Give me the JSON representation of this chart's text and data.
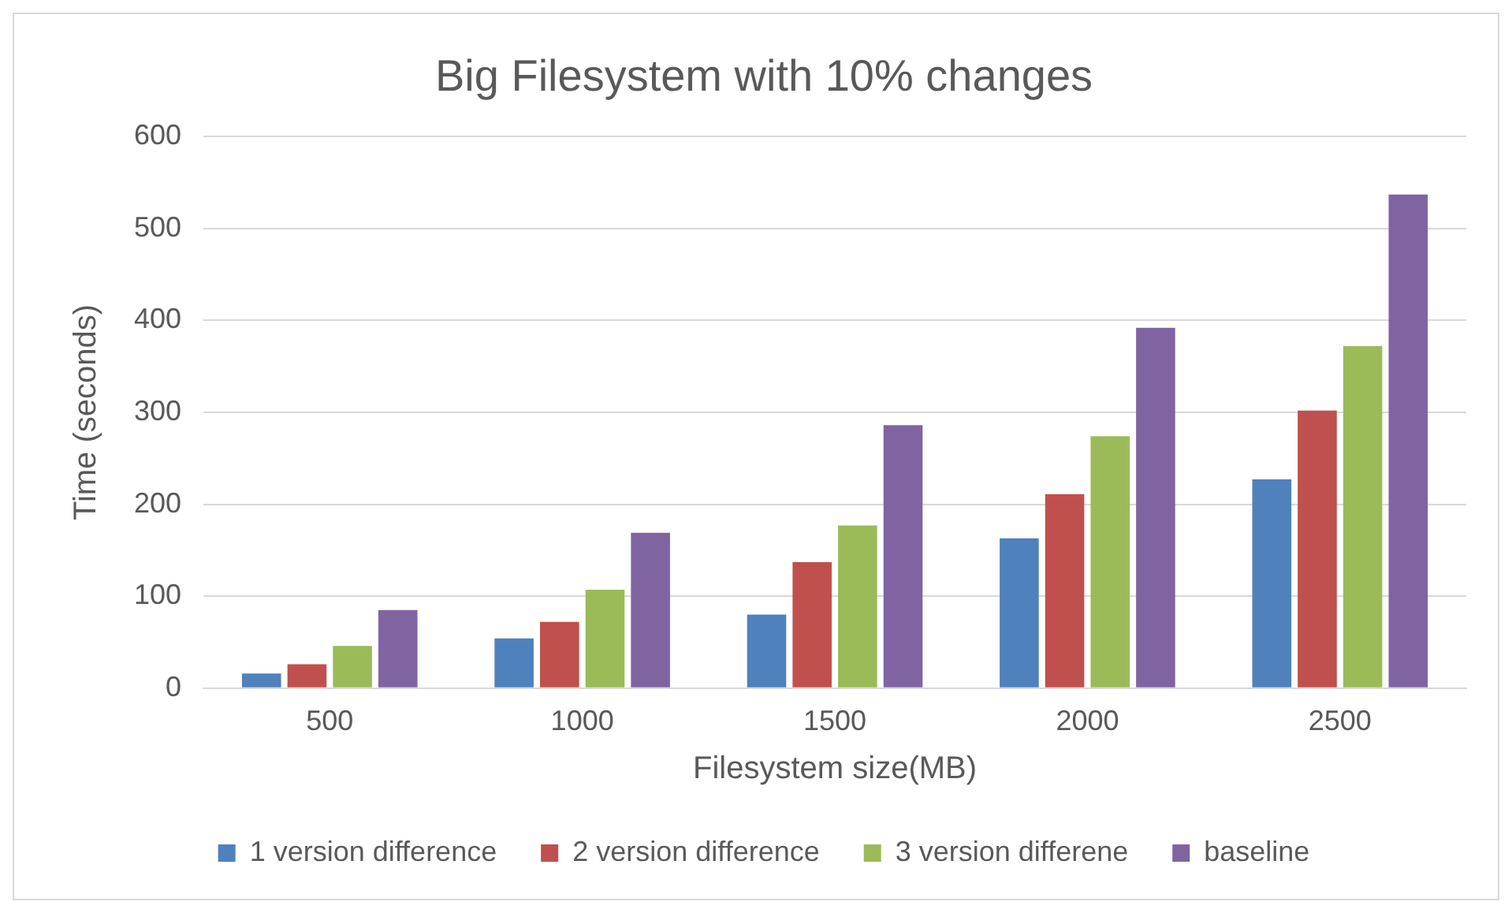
{
  "chart_data": {
    "type": "bar",
    "title": "Big Filesystem with 10% changes",
    "xlabel": "Filesystem size(MB)",
    "ylabel": "Time (seconds)",
    "categories": [
      "500",
      "1000",
      "1500",
      "2000",
      "2500"
    ],
    "series": [
      {
        "name": "1 version difference",
        "color": "#4f81bd",
        "values": [
          16,
          54,
          80,
          163,
          227
        ]
      },
      {
        "name": "2 version difference",
        "color": "#c0504d",
        "values": [
          26,
          72,
          137,
          211,
          302
        ]
      },
      {
        "name": "3 version differene",
        "color": "#9bbb59",
        "values": [
          46,
          107,
          177,
          274,
          372
        ]
      },
      {
        "name": "baseline",
        "color": "#8064a2",
        "values": [
          85,
          169,
          286,
          392,
          537
        ]
      }
    ],
    "ylim": [
      0,
      600
    ],
    "yticks": [
      0,
      100,
      200,
      300,
      400,
      500,
      600
    ],
    "grid": "y",
    "legend": "bottom"
  }
}
